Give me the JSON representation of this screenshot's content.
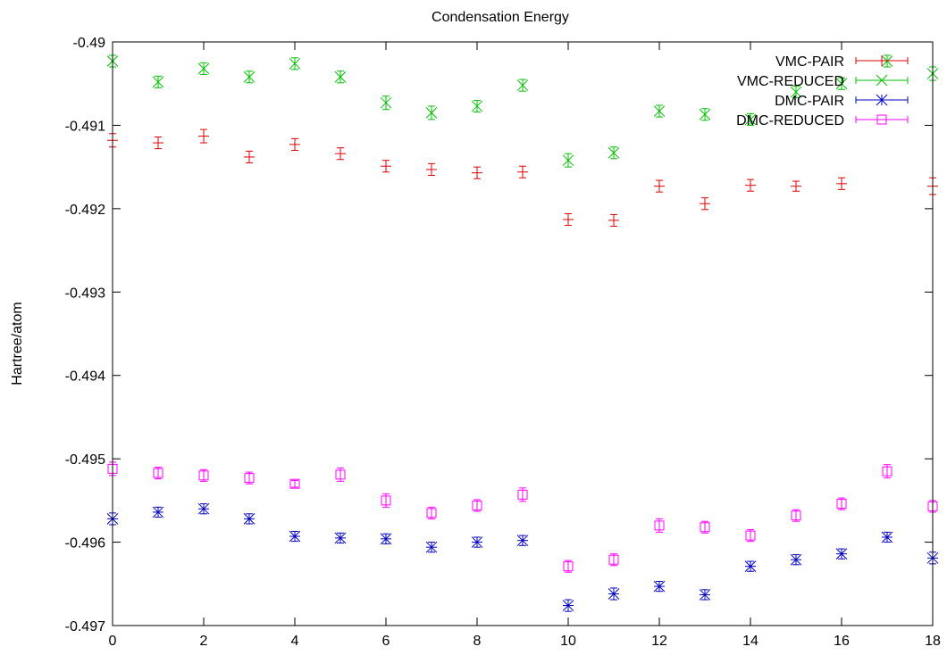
{
  "chart_data": {
    "type": "scatter",
    "title": "Condensation Energy",
    "xlabel": "",
    "ylabel": "Hartree/atom",
    "xlim": [
      0,
      18
    ],
    "ylim": [
      -0.497,
      -0.49
    ],
    "x_ticks": [
      0,
      2,
      4,
      6,
      8,
      10,
      12,
      14,
      16,
      18
    ],
    "y_ticks": [
      -0.497,
      -0.496,
      -0.495,
      -0.494,
      -0.493,
      -0.492,
      -0.491,
      -0.49
    ],
    "x_tick_labels": [
      "0",
      "2",
      "4",
      "6",
      "8",
      "10",
      "12",
      "14",
      "16",
      "18"
    ],
    "y_tick_labels": [
      "-0.497",
      "-0.496",
      "-0.495",
      "-0.494",
      "-0.493",
      "-0.492",
      "-0.491",
      "-0.49"
    ],
    "grid": false,
    "legend_position": "top-right",
    "errorbars": true,
    "series": [
      {
        "name": "VMC-PAIR",
        "color": "#e00000",
        "marker": "plus",
        "x": [
          0,
          1,
          2,
          3,
          4,
          5,
          6,
          7,
          8,
          9,
          10,
          11,
          12,
          13,
          14,
          15,
          16,
          18
        ],
        "y": [
          -0.49118,
          -0.49121,
          -0.49113,
          -0.49138,
          -0.49123,
          -0.49134,
          -0.49149,
          -0.49153,
          -0.49157,
          -0.49156,
          -0.49213,
          -0.49214,
          -0.49173,
          -0.49194,
          -0.49172,
          -0.49173,
          -0.4917,
          -0.49173
        ],
        "err": [
          8e-05,
          7e-05,
          8e-05,
          7e-05,
          7e-05,
          7e-05,
          7e-05,
          7e-05,
          7e-05,
          7e-05,
          7e-05,
          7e-05,
          7e-05,
          7e-05,
          7e-05,
          6e-05,
          7e-05,
          0.0001
        ]
      },
      {
        "name": "VMC-REDUCED",
        "color": "#00c000",
        "marker": "cross",
        "x": [
          0,
          1,
          2,
          3,
          4,
          5,
          6,
          7,
          8,
          9,
          10,
          11,
          12,
          13,
          14,
          15,
          16,
          17,
          18
        ],
        "y": [
          -0.49023,
          -0.49048,
          -0.49032,
          -0.49042,
          -0.49026,
          -0.49042,
          -0.49073,
          -0.49085,
          -0.49077,
          -0.49052,
          -0.49142,
          -0.49133,
          -0.49083,
          -0.49087,
          -0.49093,
          -0.4906,
          -0.4905,
          -0.49023,
          -0.49038
        ],
        "err": [
          7e-05,
          7e-05,
          7e-05,
          7e-05,
          7e-05,
          7e-05,
          8e-05,
          8e-05,
          7e-05,
          7e-05,
          8e-05,
          7e-05,
          7e-05,
          7e-05,
          7e-05,
          7e-05,
          7e-05,
          7e-05,
          8e-05
        ]
      },
      {
        "name": "DMC-PAIR",
        "color": "#0000c0",
        "marker": "star",
        "x": [
          0,
          1,
          2,
          3,
          4,
          5,
          6,
          7,
          8,
          9,
          10,
          11,
          12,
          13,
          14,
          15,
          16,
          17,
          18
        ],
        "y": [
          -0.49572,
          -0.49564,
          -0.4956,
          -0.49572,
          -0.49593,
          -0.49595,
          -0.49596,
          -0.49606,
          -0.496,
          -0.49598,
          -0.49676,
          -0.49662,
          -0.49653,
          -0.49663,
          -0.49629,
          -0.49621,
          -0.49614,
          -0.49594,
          -0.49619
        ],
        "err": [
          7e-05,
          6e-05,
          6e-05,
          6e-05,
          6e-05,
          6e-05,
          6e-05,
          6e-05,
          6e-05,
          6e-05,
          7e-05,
          7e-05,
          6e-05,
          6e-05,
          6e-05,
          6e-05,
          6e-05,
          6e-05,
          7e-05
        ]
      },
      {
        "name": "DMC-REDUCED",
        "color": "#ff00ff",
        "marker": "square",
        "x": [
          0,
          1,
          2,
          3,
          4,
          5,
          6,
          7,
          8,
          9,
          10,
          11,
          12,
          13,
          14,
          15,
          16,
          17,
          18
        ],
        "y": [
          -0.49512,
          -0.49517,
          -0.4952,
          -0.49523,
          -0.4953,
          -0.49519,
          -0.4955,
          -0.49565,
          -0.49556,
          -0.49543,
          -0.49629,
          -0.49621,
          -0.4958,
          -0.49582,
          -0.49592,
          -0.49568,
          -0.49554,
          -0.49515,
          -0.49557
        ],
        "err": [
          8e-05,
          7e-05,
          7e-05,
          7e-05,
          4e-05,
          8e-05,
          8e-05,
          7e-05,
          7e-05,
          8e-05,
          7e-05,
          7e-05,
          8e-05,
          7e-05,
          7e-05,
          7e-05,
          7e-05,
          8e-05,
          7e-05
        ]
      }
    ]
  }
}
